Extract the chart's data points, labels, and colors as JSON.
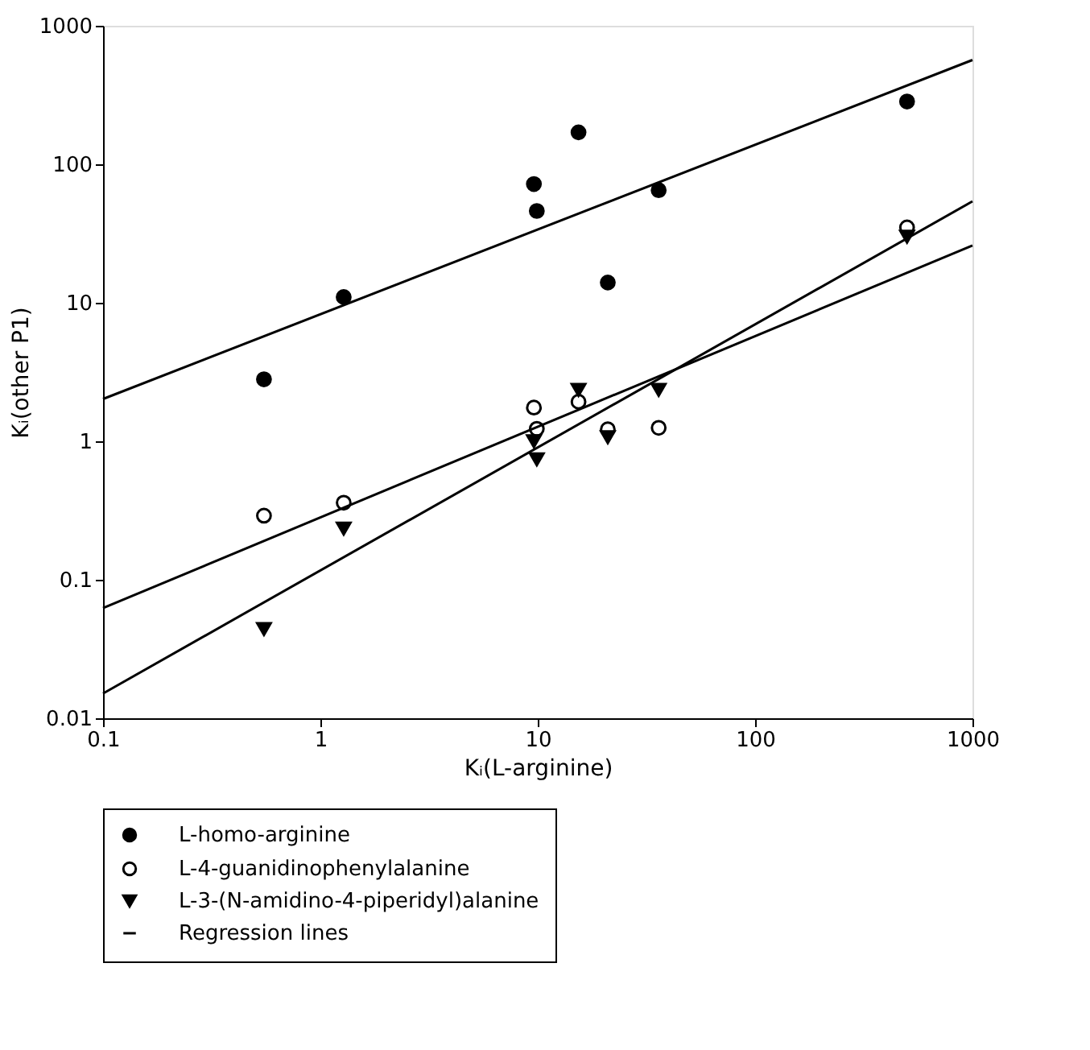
{
  "chart_data": {
    "type": "scatter",
    "xlabel": "Kᵢ(L-arginine)",
    "ylabel": "Kᵢ(other P1)",
    "log": "xy",
    "grid": false,
    "legend": "bottom",
    "xlim": [
      0.1,
      1000
    ],
    "xticks": [
      0.1,
      1,
      10,
      100,
      1000
    ],
    "ylim": [
      0.01,
      1000
    ],
    "yticks": [
      0.01,
      0.1,
      1,
      10,
      100,
      1000
    ],
    "series": [
      {
        "name": "L-homo-arginine",
        "marker": "circle",
        "color": "#000000",
        "x": [
          0.55,
          1.28,
          9.6,
          9.9,
          15.4,
          21,
          36,
          500
        ],
        "values": [
          2.8,
          11,
          72,
          46,
          170,
          14,
          65,
          284
        ]
      },
      {
        "name": "L-4-guanidinophenylalanine",
        "marker": "circle",
        "color": "#ffffff",
        "x": [
          0.55,
          1.28,
          9.6,
          9.9,
          15.4,
          21,
          36,
          500
        ],
        "values": [
          0.29,
          0.36,
          1.75,
          1.23,
          1.93,
          1.22,
          1.25,
          35
        ]
      },
      {
        "name": "L-3-(N-amidino-4-piperidyl)alanine",
        "marker": "triangle",
        "color": "#000000",
        "x": [
          0.55,
          1.28,
          9.6,
          9.9,
          15.4,
          21,
          36,
          500
        ],
        "values": [
          0.044,
          0.234,
          1.0,
          0.74,
          2.35,
          1.07,
          2.35,
          30
        ]
      },
      {
        "name": "Regression lines",
        "type": "line",
        "marker": "none",
        "color": "#000000",
        "x": [
          0.1,
          1000
        ],
        "values": [
          2.02,
          566
        ]
      },
      {
        "type": "line",
        "marker": "none",
        "color": "#000000",
        "x": [
          0.1,
          1000
        ],
        "values": [
          0.0625,
          25.9
        ]
      },
      {
        "type": "line",
        "marker": "none",
        "color": "#000000",
        "x": [
          0.1,
          1000
        ],
        "values": [
          0.0151,
          54
        ]
      }
    ]
  }
}
